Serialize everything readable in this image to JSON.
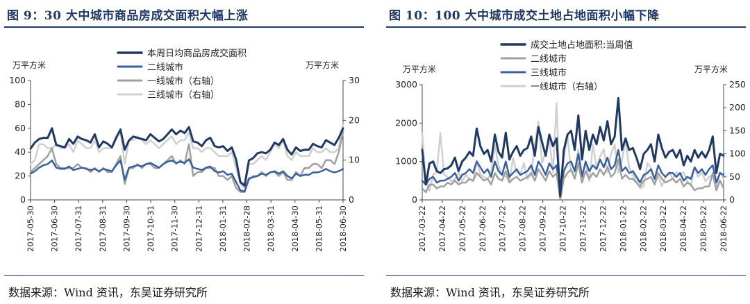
{
  "charts": [
    {
      "title": "图 9：30 大中城市商品房成交面积大幅上涨",
      "unit_left": "万平方米",
      "unit_right": "万平方米",
      "source": "数据来源：Wind 资讯，东吴证券研究所"
    },
    {
      "title": "图 10：100 大中城市成交土地占地面积小幅下降",
      "unit_left": "万平方米",
      "unit_right": "万平方米",
      "source": "数据来源：Wind 资讯，东吴证券研究所"
    }
  ],
  "chart_data": [
    {
      "type": "line",
      "x_tick_labels": [
        "2017-05-30",
        "2017-06-30",
        "2017-07-31",
        "2017-08-31",
        "2017-09-30",
        "2017-10-31",
        "2017-11-30",
        "2017-12-31",
        "2018-01-31",
        "2018-02-28",
        "2018-03-31",
        "2018-04-30",
        "2018-05-31",
        "2018-06-30"
      ],
      "y_left": {
        "range": [
          0,
          100
        ],
        "ticks": [
          0,
          20,
          40,
          60,
          80,
          100
        ]
      },
      "y_right": {
        "range": [
          0,
          30
        ],
        "ticks": [
          0,
          10,
          20,
          30
        ]
      },
      "legend_position": "top-center",
      "grid": false,
      "series": [
        {
          "name": "本周日均商品房成交面积",
          "axis": "left",
          "color": "#1f3864",
          "width": 3,
          "values": [
            43,
            48,
            51,
            52,
            52,
            60,
            46,
            45,
            44,
            51,
            47,
            53,
            51,
            50,
            48,
            55,
            44,
            49,
            47,
            44,
            52,
            59,
            42,
            50,
            53,
            52,
            51,
            50,
            55,
            52,
            49,
            51,
            55,
            59,
            55,
            58,
            56,
            61,
            49,
            48,
            45,
            50,
            52,
            45,
            44,
            45,
            41,
            44,
            34,
            15,
            12,
            33,
            35,
            39,
            40,
            39,
            42,
            48,
            46,
            51,
            42,
            38,
            44,
            41,
            42,
            42,
            47,
            45,
            44,
            50,
            48,
            46,
            52,
            60
          ]
        },
        {
          "name": "二线城市",
          "axis": "left",
          "color": "#3a5f9e",
          "width": 2.5,
          "values": [
            22,
            24,
            27,
            29,
            30,
            33,
            27,
            26,
            26,
            28,
            25,
            26,
            27,
            26,
            25,
            26,
            24,
            26,
            25,
            24,
            29,
            33,
            17,
            27,
            28,
            29,
            28,
            30,
            31,
            29,
            27,
            30,
            32,
            33,
            31,
            32,
            31,
            34,
            27,
            26,
            25,
            27,
            28,
            24,
            23,
            24,
            21,
            22,
            15,
            8,
            7,
            18,
            19,
            20,
            22,
            21,
            23,
            24,
            22,
            24,
            20,
            18,
            22,
            20,
            21,
            21,
            23,
            23,
            24,
            26,
            24,
            23,
            24,
            26
          ]
        },
        {
          "name": "一线城市（右轴）",
          "axis": "right",
          "color": "#a0a0a0",
          "width": 2.5,
          "values": [
            7,
            8,
            9,
            10,
            11,
            13,
            9,
            8,
            8,
            8,
            8,
            9,
            8,
            8,
            7,
            8,
            7,
            8,
            7,
            7,
            9,
            11,
            4,
            8,
            8,
            9,
            8,
            9,
            9,
            8,
            8,
            9,
            10,
            11,
            9,
            10,
            9,
            14,
            6,
            7,
            7,
            8,
            8,
            8,
            6,
            6,
            5,
            6,
            3,
            2,
            2,
            5,
            6,
            6,
            7,
            6,
            7,
            7,
            6,
            7,
            5,
            5,
            7,
            6,
            8,
            8,
            9,
            9,
            8,
            10,
            10,
            9,
            12,
            17
          ]
        },
        {
          "name": "三线城市（右轴）",
          "axis": "right",
          "color": "#d0d0d0",
          "width": 2.5,
          "values": [
            9,
            10,
            14,
            14,
            13,
            13,
            14,
            13,
            13,
            14,
            12,
            15,
            14,
            13,
            13,
            15,
            12,
            13,
            13,
            13,
            16,
            17,
            9,
            15,
            15,
            16,
            15,
            14,
            15,
            14,
            13,
            14,
            15,
            16,
            14,
            15,
            15,
            17,
            13,
            13,
            12,
            13,
            13,
            12,
            11,
            11,
            11,
            12,
            8,
            4,
            3,
            9,
            9,
            10,
            11,
            10,
            12,
            14,
            13,
            15,
            11,
            10,
            12,
            11,
            11,
            11,
            13,
            12,
            12,
            13,
            12,
            12,
            13,
            19
          ]
        }
      ]
    },
    {
      "type": "line",
      "x_tick_labels": [
        "2017-03-22",
        "2017-04-22",
        "2017-05-22",
        "2017-06-22",
        "2017-07-22",
        "2017-08-22",
        "2017-09-22",
        "2017-10-22",
        "2017-11-22",
        "2017-12-22",
        "2018-01-22",
        "2018-02-22",
        "2018-03-22",
        "2018-04-22",
        "2018-05-22",
        "2018-06-22"
      ],
      "y_left": {
        "range": [
          0,
          3000
        ],
        "ticks": [
          0,
          1000,
          2000,
          3000
        ]
      },
      "y_right": {
        "range": [
          0,
          250
        ],
        "ticks": [
          0,
          50,
          100,
          150,
          200,
          250
        ]
      },
      "legend_position": "top-center",
      "grid": false,
      "series": [
        {
          "name": "成交土地占地面积:当周值",
          "axis": "left",
          "color": "#1f3864",
          "width": 3,
          "values": [
            1300,
            400,
            950,
            1000,
            750,
            700,
            800,
            820,
            900,
            1100,
            750,
            1000,
            1100,
            1250,
            1150,
            1860,
            1400,
            1200,
            1300,
            1000,
            1700,
            1250,
            1100,
            1750,
            1050,
            1250,
            1400,
            1150,
            1300,
            1350,
            1650,
            1150,
            1900,
            1500,
            1150,
            1700,
            1400,
            1600,
            100,
            1300,
            1700,
            1800,
            1300,
            2200,
            1050,
            1800,
            1300,
            1700,
            1450,
            1900,
            1550,
            2050,
            1450,
            1650,
            2650,
            1300,
            1600,
            1300,
            1350,
            1100,
            800,
            1200,
            1300,
            1450,
            1000,
            1700,
            1350,
            1100,
            1250,
            1300,
            1100,
            1300,
            900,
            1150,
            1000,
            1300,
            1100,
            1250,
            1100,
            1300,
            1650,
            700,
            1200,
            1150
          ]
        },
        {
          "name": "二线城市",
          "axis": "left",
          "color": "#a0a0a0",
          "width": 2.5,
          "values": [
            300,
            200,
            400,
            400,
            300,
            350,
            350,
            450,
            400,
            500,
            400,
            450,
            450,
            550,
            500,
            700,
            600,
            500,
            550,
            400,
            700,
            550,
            500,
            750,
            450,
            550,
            600,
            500,
            550,
            600,
            700,
            500,
            800,
            650,
            500,
            750,
            600,
            700,
            0,
            550,
            700,
            800,
            550,
            950,
            450,
            750,
            550,
            700,
            600,
            800,
            650,
            850,
            600,
            700,
            1050,
            550,
            650,
            550,
            550,
            450,
            350,
            500,
            550,
            600,
            400,
            700,
            550,
            450,
            500,
            550,
            450,
            550,
            350,
            450,
            400,
            250,
            300,
            300,
            350,
            350,
            700,
            250,
            500,
            300
          ]
        },
        {
          "name": "三线城市",
          "axis": "left",
          "color": "#3a5f9e",
          "width": 2.5,
          "values": [
            500,
            400,
            550,
            600,
            450,
            500,
            500,
            550,
            600,
            700,
            500,
            650,
            700,
            800,
            700,
            1000,
            850,
            700,
            800,
            600,
            1000,
            750,
            650,
            1000,
            600,
            700,
            800,
            650,
            700,
            750,
            900,
            650,
            1000,
            850,
            650,
            950,
            800,
            900,
            50,
            750,
            950,
            1000,
            750,
            1200,
            600,
            1000,
            750,
            900,
            800,
            1050,
            850,
            1100,
            800,
            900,
            1300,
            750,
            850,
            700,
            750,
            600,
            450,
            650,
            700,
            800,
            550,
            900,
            700,
            600,
            700,
            700,
            600,
            700,
            500,
            600,
            550,
            850,
            700,
            800,
            650,
            800,
            900,
            450,
            700,
            650
          ]
        },
        {
          "name": "一线城市（右轴）",
          "axis": "right",
          "color": "#d0d0d0",
          "width": 2.5,
          "values": [
            145,
            40,
            20,
            55,
            60,
            145,
            55,
            50,
            40,
            45,
            60,
            40,
            55,
            45,
            40,
            85,
            55,
            50,
            45,
            60,
            120,
            75,
            55,
            50,
            40,
            90,
            60,
            55,
            80,
            45,
            55,
            120,
            170,
            80,
            105,
            135,
            60,
            210,
            0,
            90,
            140,
            60,
            60,
            110,
            55,
            80,
            40,
            120,
            70,
            95,
            110,
            60,
            100,
            120,
            60,
            85,
            130,
            70,
            55,
            40,
            25,
            30,
            80,
            70,
            40,
            50,
            30,
            50,
            60,
            45,
            60,
            55,
            60,
            40,
            30,
            70,
            50,
            60,
            40,
            50,
            55,
            25,
            60,
            45
          ]
        }
      ]
    }
  ]
}
